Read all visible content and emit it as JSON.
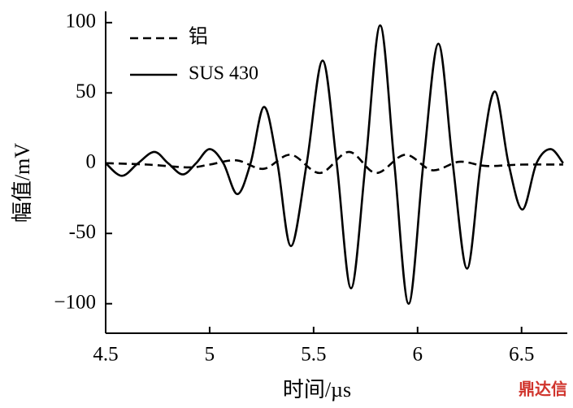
{
  "chart_data": {
    "type": "line",
    "xlabel": "时间/µs",
    "ylabel": "幅值/mV",
    "watermark": "鼎达信",
    "xlim": [
      4.5,
      6.72
    ],
    "ylim": [
      -121,
      108
    ],
    "xticks": [
      4.5,
      5.0,
      5.5,
      6.0,
      6.5
    ],
    "yticks": [
      100,
      50,
      0,
      -50,
      {
        "value": -100,
        "label": "−100"
      }
    ],
    "series": [
      {
        "name": "铝",
        "color": "#000000",
        "line_style": "dashed",
        "x": [
          4.5,
          4.7,
          4.9,
          5.0,
          5.13,
          5.26,
          5.39,
          5.53,
          5.67,
          5.8,
          5.94,
          6.07,
          6.2,
          6.33,
          6.5,
          6.7
        ],
        "values": [
          0,
          -1,
          -3,
          -1,
          2,
          -4,
          6,
          -7,
          8,
          -7,
          6,
          -5,
          1,
          -2,
          -1,
          -1
        ]
      },
      {
        "name": "SUS 430",
        "color": "#000000",
        "line_style": "solid",
        "x": [
          4.5,
          4.578,
          4.656,
          4.734,
          4.8,
          4.871,
          4.935,
          5.0,
          5.066,
          5.133,
          5.197,
          5.262,
          5.326,
          5.391,
          5.467,
          5.543,
          5.611,
          5.68,
          5.75,
          5.82,
          5.888,
          5.957,
          6.028,
          6.1,
          6.169,
          6.238,
          6.304,
          6.371,
          6.437,
          6.504,
          6.572,
          6.64,
          6.7
        ],
        "values": [
          0,
          -9,
          0,
          8,
          0,
          -8,
          0,
          10,
          0,
          -22,
          0,
          40,
          0,
          -59,
          0,
          73,
          0,
          -89,
          0,
          98,
          0,
          -100,
          0,
          85,
          0,
          -75,
          0,
          51,
          0,
          -33,
          0,
          10,
          0
        ]
      }
    ]
  }
}
